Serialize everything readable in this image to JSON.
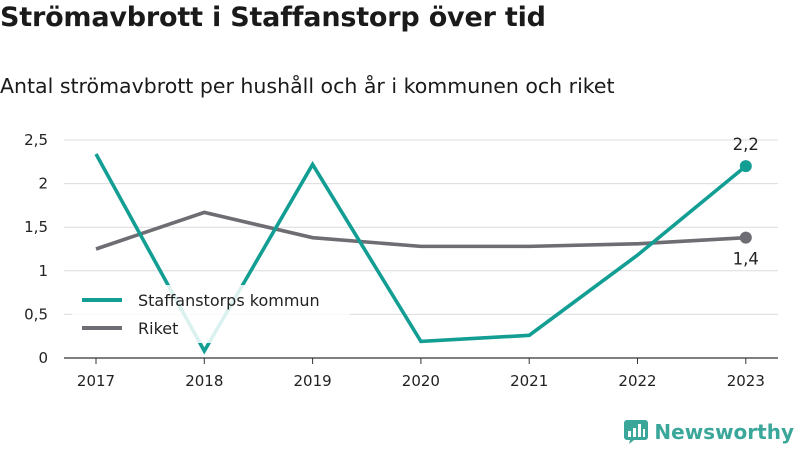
{
  "header": {
    "title": "Strömavbrott i Staffanstorp över tid",
    "subtitle": "Antal strömavbrott per hushåll och år i kommunen och riket"
  },
  "brand": {
    "name": "Newsworthy",
    "logo_icon": "bar-chart-logo-icon",
    "color": "#3aa79a"
  },
  "chart_data": {
    "type": "line",
    "x": [
      "2017",
      "2018",
      "2019",
      "2020",
      "2021",
      "2022",
      "2023"
    ],
    "ylim": [
      0,
      2.5
    ],
    "yticks": [
      0,
      0.5,
      1,
      1.5,
      2,
      2.5
    ],
    "ytick_labels": [
      "0",
      "0,5",
      "1",
      "1,5",
      "2",
      "2,5"
    ],
    "grid": true,
    "legend": "bottom-left",
    "series": [
      {
        "name": "Staffanstorps kommun",
        "color": "#139e94",
        "values": [
          2.34,
          0.08,
          2.22,
          0.19,
          0.26,
          1.18,
          2.2
        ],
        "end_label": "2,2"
      },
      {
        "name": "Riket",
        "color": "#6d6d73",
        "values": [
          1.25,
          1.67,
          1.38,
          1.28,
          1.28,
          1.31,
          1.38
        ],
        "end_label": "1,4"
      }
    ]
  }
}
